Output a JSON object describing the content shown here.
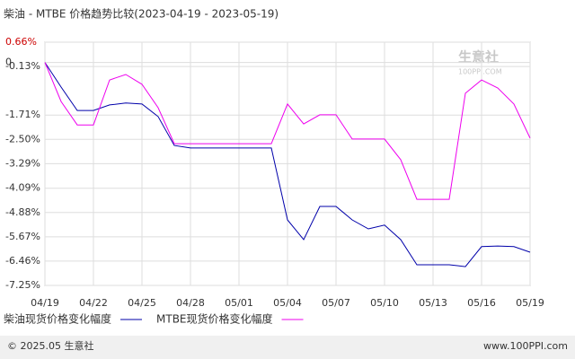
{
  "chart_data": {
    "type": "line",
    "title": "柴油 - MTBE 价格趋势比较(2023-04-19 - 2023-05-19)",
    "watermark": "生意社",
    "watermark_url": "100PPI.COM",
    "footer_left": "© 2025.05 生意社",
    "footer_right": "www.100PPI.com",
    "categories": [
      "04/19",
      null,
      null,
      "04/22",
      null,
      null,
      "04/25",
      null,
      null,
      "04/28",
      null,
      null,
      "05/01",
      null,
      null,
      "05/04",
      null,
      null,
      "05/07",
      null,
      null,
      "05/10",
      null,
      null,
      "05/13",
      null,
      null,
      "05/16",
      null,
      null,
      "05/19"
    ],
    "series": [
      {
        "name": "柴油现货价格变化幅度",
        "color": "#0000aa",
        "values": [
          0,
          -0.8,
          -1.56,
          -1.56,
          -1.38,
          -1.32,
          -1.35,
          -1.76,
          -2.7,
          -2.78,
          -2.78,
          -2.78,
          -2.78,
          -2.78,
          -2.78,
          -5.12,
          -5.76,
          -4.68,
          -4.68,
          -5.12,
          -5.41,
          -5.29,
          -5.76,
          -6.58,
          -6.58,
          -6.58,
          -6.64,
          -5.99,
          -5.97,
          -5.99,
          -6.17
        ]
      },
      {
        "name": "MTBE现货价格变化幅度",
        "color": "#ee00ee",
        "values": [
          0,
          -1.27,
          -2.03,
          -2.03,
          -0.57,
          -0.39,
          -0.71,
          -1.47,
          -2.64,
          -2.64,
          -2.64,
          -2.64,
          -2.64,
          -2.64,
          -2.64,
          -1.35,
          -2.0,
          -1.7,
          -1.7,
          -2.49,
          -2.49,
          -2.49,
          -3.16,
          -4.45,
          -4.45,
          -4.45,
          -1.0,
          -0.57,
          -0.83,
          -1.35,
          -2.46
        ]
      }
    ],
    "ylim": [
      -7.25,
      0.66
    ],
    "yticks": [
      {
        "value": 0.66,
        "label": "0.66%"
      },
      {
        "value": -0.13,
        "label": "-0.13%"
      },
      0,
      {
        "value": -1.71,
        "label": "-1.71%"
      },
      {
        "value": -2.5,
        "label": "-2.50%"
      },
      {
        "value": -3.29,
        "label": "-3.29%"
      },
      {
        "value": -4.09,
        "label": "-4.09%"
      },
      {
        "value": -4.88,
        "label": "-4.88%"
      },
      {
        "value": -5.67,
        "label": "-5.67%"
      },
      {
        "value": -6.46,
        "label": "-6.46%"
      },
      {
        "value": -7.25,
        "label": "-7.25%"
      }
    ],
    "grid": true
  }
}
